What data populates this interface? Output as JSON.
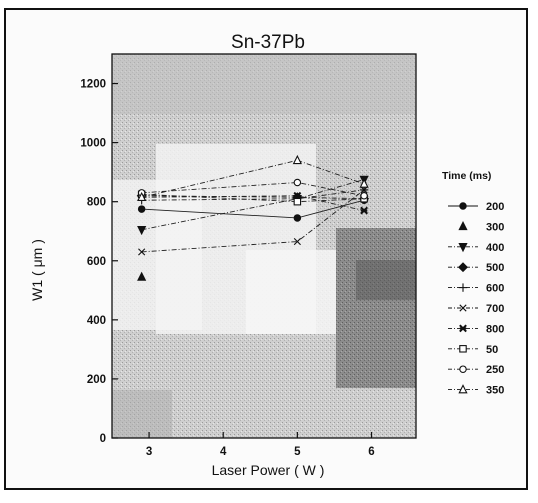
{
  "chart_data": {
    "type": "line",
    "title": "Sn-37Pb",
    "xlabel": "Laser Power ( W )",
    "ylabel": "W1 ( μm )",
    "xlim": [
      2.5,
      6.6
    ],
    "ylim": [
      0,
      1300
    ],
    "xticks": [
      3,
      4,
      5,
      6
    ],
    "yticks": [
      0,
      200,
      400,
      600,
      800,
      1000,
      1200
    ],
    "x": [
      2.9,
      5.0,
      5.9
    ],
    "legend_title": "Time (ms)",
    "legend_position": "right",
    "grid": false,
    "series": [
      {
        "name": "200",
        "marker": "circle-filled",
        "dash": "solid",
        "values": [
          775,
          745,
          805
        ]
      },
      {
        "name": "300",
        "marker": "triangle-filled",
        "dash": "none",
        "values": [
          545,
          null,
          null
        ]
      },
      {
        "name": "400",
        "marker": "triangle-down-filled",
        "dash": "dashdot",
        "values": [
          705,
          810,
          875
        ]
      },
      {
        "name": "500",
        "marker": "diamond-filled",
        "dash": "dashdot",
        "values": [
          820,
          815,
          810
        ]
      },
      {
        "name": "600",
        "marker": "plus",
        "dash": "dashdot",
        "values": [
          805,
          810,
          840
        ]
      },
      {
        "name": "700",
        "marker": "x",
        "dash": "dashdot",
        "values": [
          630,
          665,
          840
        ]
      },
      {
        "name": "800",
        "marker": "asterisk",
        "dash": "dashdot",
        "values": [
          815,
          820,
          770
        ]
      },
      {
        "name": "50",
        "marker": "square-open",
        "dash": "dashdot",
        "values": [
          825,
          800,
          810
        ]
      },
      {
        "name": "250",
        "marker": "circle-open",
        "dash": "dashdot",
        "values": [
          830,
          865,
          820
        ]
      },
      {
        "name": "350",
        "marker": "triangle-open",
        "dash": "dashdot",
        "values": [
          815,
          940,
          860
        ]
      }
    ]
  }
}
